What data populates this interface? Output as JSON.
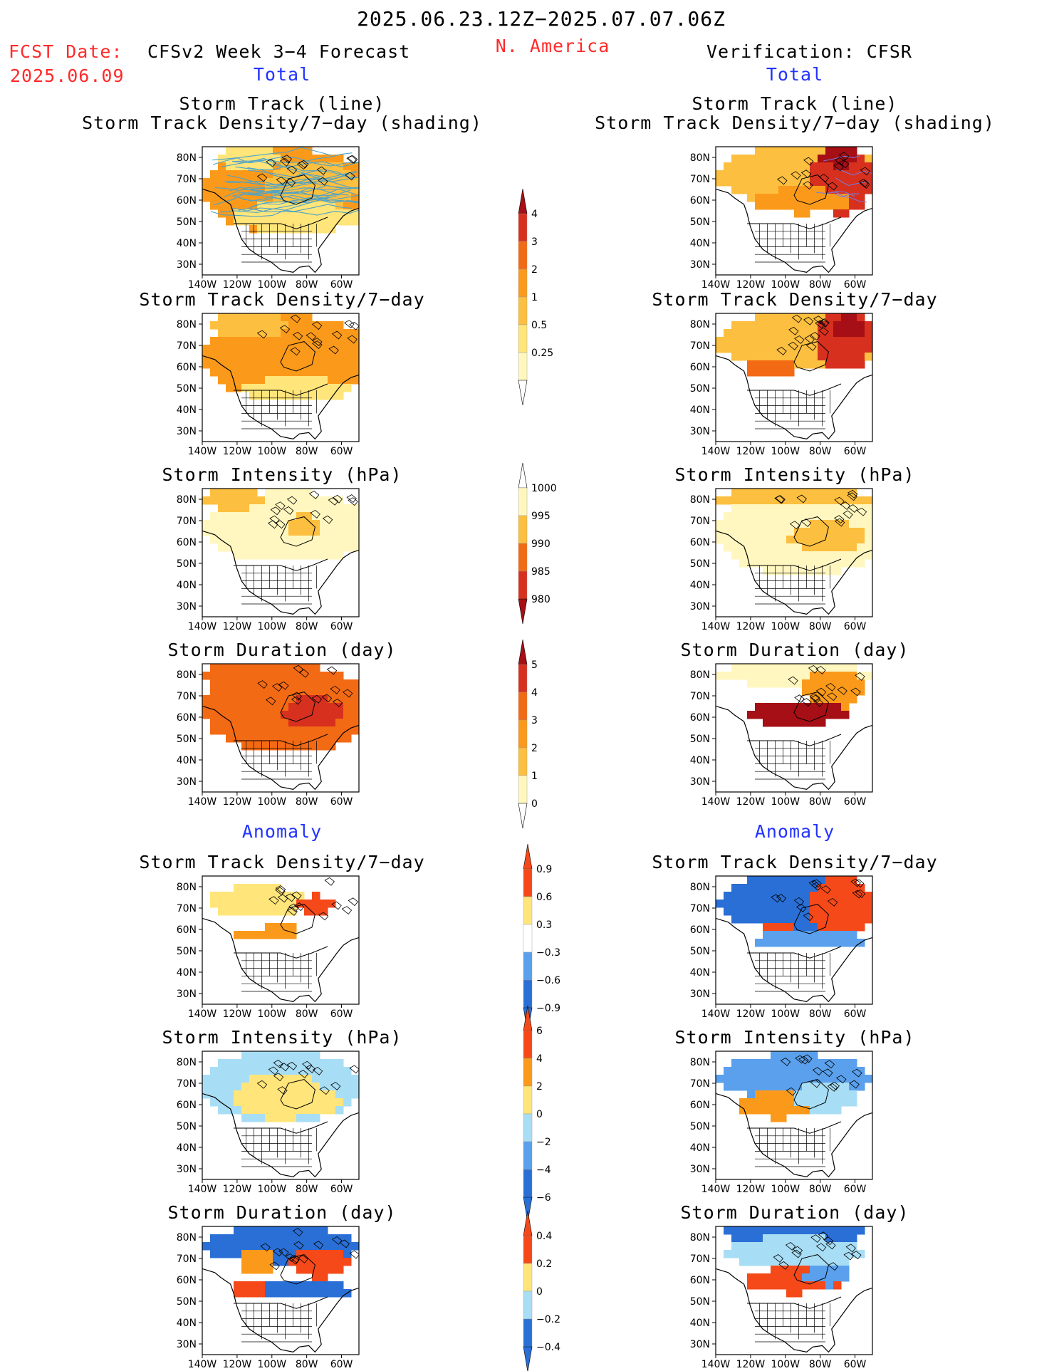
{
  "header": {
    "period": "2025.06.23.12Z−2025.07.07.06Z",
    "fcst_label": "FCST Date:",
    "fcst_date": "2025.06.09",
    "model": "CFSv2 Week 3−4 Forecast",
    "region": "N. America",
    "verification": "Verification: CFSR",
    "left_section_total": "Total",
    "right_section_total": "Total",
    "left_section_anomaly": "Anomaly",
    "right_section_anomaly": "Anomaly"
  },
  "colors": {
    "cb_density": [
      "#fff7bf",
      "#ffe57a",
      "#fdbf3f",
      "#fb9a1a",
      "#f36a14",
      "#d7301f",
      "#a50f15"
    ],
    "cb_intensity": [
      "#fff7bf",
      "#fdbf3f",
      "#f36a14",
      "#d7301f",
      "#a50f15"
    ],
    "cb_duration": [
      "#fff7bf",
      "#fdbf3f",
      "#fb9a1a",
      "#f36a14",
      "#d7301f",
      "#a50f15"
    ],
    "cb_anom": [
      "#2a6fd6",
      "#5aa0ec",
      "#a8def5",
      "#ffffff",
      "#ffe57a",
      "#fb9a1a",
      "#f5491a"
    ],
    "storm_track_line": "#4fa3c7"
  },
  "chart_data": [
    {
      "type": "heatmap",
      "panel": "forecast-total-track",
      "title": "Storm Track (line)\nStorm Track Density/7−day (shading)",
      "xticks": [
        "140W",
        "120W",
        "100W",
        "80W",
        "60W"
      ],
      "yticks": [
        "80N",
        "70N",
        "60N",
        "50N",
        "40N",
        "30N"
      ],
      "xlim": [
        -140,
        -50
      ],
      "ylim": [
        25,
        85
      ],
      "colorbar_ticks": [
        "0.25",
        "0.5",
        "1",
        "2",
        "3",
        "4"
      ]
    },
    {
      "type": "heatmap",
      "panel": "verification-total-track",
      "title": "Storm Track (line)\nStorm Track Density/7−day (shading)",
      "xticks": [
        "140W",
        "120W",
        "100W",
        "80W",
        "60W"
      ],
      "yticks": [
        "80N",
        "70N",
        "60N",
        "50N",
        "40N",
        "30N"
      ],
      "xlim": [
        -140,
        -50
      ],
      "ylim": [
        25,
        85
      ]
    },
    {
      "type": "heatmap",
      "panel": "forecast-total-density",
      "title": "Storm Track Density/7−day",
      "xticks": [
        "140W",
        "120W",
        "100W",
        "80W",
        "60W"
      ],
      "yticks": [
        "80N",
        "70N",
        "60N",
        "50N",
        "40N",
        "30N"
      ],
      "xlim": [
        -140,
        -50
      ],
      "ylim": [
        25,
        85
      ]
    },
    {
      "type": "heatmap",
      "panel": "verification-total-density",
      "title": "Storm Track Density/7−day",
      "xticks": [
        "140W",
        "120W",
        "100W",
        "80W",
        "60W"
      ],
      "yticks": [
        "80N",
        "70N",
        "60N",
        "50N",
        "40N",
        "30N"
      ],
      "xlim": [
        -140,
        -50
      ],
      "ylim": [
        25,
        85
      ]
    },
    {
      "type": "heatmap",
      "panel": "forecast-total-intensity",
      "title": "Storm Intensity (hPa)",
      "xticks": [
        "140W",
        "120W",
        "100W",
        "80W",
        "60W"
      ],
      "yticks": [
        "80N",
        "70N",
        "60N",
        "50N",
        "40N",
        "30N"
      ],
      "xlim": [
        -140,
        -50
      ],
      "ylim": [
        25,
        85
      ],
      "colorbar_ticks": [
        "1000",
        "995",
        "990",
        "985",
        "980"
      ]
    },
    {
      "type": "heatmap",
      "panel": "verification-total-intensity",
      "title": "Storm Intensity (hPa)",
      "xticks": [
        "140W",
        "120W",
        "100W",
        "80W",
        "60W"
      ],
      "yticks": [
        "80N",
        "70N",
        "60N",
        "50N",
        "40N",
        "30N"
      ],
      "xlim": [
        -140,
        -50
      ],
      "ylim": [
        25,
        85
      ]
    },
    {
      "type": "heatmap",
      "panel": "forecast-total-duration",
      "title": "Storm Duration (day)",
      "xticks": [
        "140W",
        "120W",
        "100W",
        "80W",
        "60W"
      ],
      "yticks": [
        "80N",
        "70N",
        "60N",
        "50N",
        "40N",
        "30N"
      ],
      "xlim": [
        -140,
        -50
      ],
      "ylim": [
        25,
        85
      ],
      "colorbar_ticks": [
        "0",
        "1",
        "2",
        "3",
        "4",
        "5"
      ]
    },
    {
      "type": "heatmap",
      "panel": "verification-total-duration",
      "title": "Storm Duration (day)",
      "xticks": [
        "140W",
        "120W",
        "100W",
        "80W",
        "60W"
      ],
      "yticks": [
        "80N",
        "70N",
        "60N",
        "50N",
        "40N",
        "30N"
      ],
      "xlim": [
        -140,
        -50
      ],
      "ylim": [
        25,
        85
      ]
    },
    {
      "type": "heatmap",
      "panel": "forecast-anomaly-density",
      "title": "Storm Track Density/7−day",
      "xticks": [
        "140W",
        "120W",
        "100W",
        "80W",
        "60W"
      ],
      "yticks": [
        "80N",
        "70N",
        "60N",
        "50N",
        "40N",
        "30N"
      ],
      "xlim": [
        -140,
        -50
      ],
      "ylim": [
        25,
        85
      ],
      "colorbar_ticks": [
        "−0.9",
        "−0.6",
        "−0.3",
        "0.3",
        "0.6",
        "0.9"
      ]
    },
    {
      "type": "heatmap",
      "panel": "verification-anomaly-density",
      "title": "Storm Track Density/7−day",
      "xticks": [
        "140W",
        "120W",
        "100W",
        "80W",
        "60W"
      ],
      "yticks": [
        "80N",
        "70N",
        "60N",
        "50N",
        "40N",
        "30N"
      ],
      "xlim": [
        -140,
        -50
      ],
      "ylim": [
        25,
        85
      ]
    },
    {
      "type": "heatmap",
      "panel": "forecast-anomaly-intensity",
      "title": "Storm Intensity (hPa)",
      "xticks": [
        "140W",
        "120W",
        "100W",
        "80W",
        "60W"
      ],
      "yticks": [
        "80N",
        "70N",
        "60N",
        "50N",
        "40N",
        "30N"
      ],
      "xlim": [
        -140,
        -50
      ],
      "ylim": [
        25,
        85
      ],
      "colorbar_ticks": [
        "−6",
        "−4",
        "−2",
        "0",
        "2",
        "4",
        "6"
      ]
    },
    {
      "type": "heatmap",
      "panel": "verification-anomaly-intensity",
      "title": "Storm Intensity (hPa)",
      "xticks": [
        "140W",
        "120W",
        "100W",
        "80W",
        "60W"
      ],
      "yticks": [
        "80N",
        "70N",
        "60N",
        "50N",
        "40N",
        "30N"
      ],
      "xlim": [
        -140,
        -50
      ],
      "ylim": [
        25,
        85
      ]
    },
    {
      "type": "heatmap",
      "panel": "forecast-anomaly-duration",
      "title": "Storm Duration (day)",
      "xticks": [
        "140W",
        "120W",
        "100W",
        "80W",
        "60W"
      ],
      "yticks": [
        "80N",
        "70N",
        "60N",
        "50N",
        "40N",
        "30N"
      ],
      "xlim": [
        -140,
        -50
      ],
      "ylim": [
        25,
        85
      ],
      "colorbar_ticks": [
        "−0.4",
        "−0.2",
        "0",
        "0.2",
        "0.4"
      ]
    },
    {
      "type": "heatmap",
      "panel": "verification-anomaly-duration",
      "title": "Storm Duration (day)",
      "xticks": [
        "140W",
        "120W",
        "100W",
        "80W",
        "60W"
      ],
      "yticks": [
        "80N",
        "70N",
        "60N",
        "50N",
        "40N",
        "30N"
      ],
      "xlim": [
        -140,
        -50
      ],
      "ylim": [
        25,
        85
      ]
    }
  ]
}
